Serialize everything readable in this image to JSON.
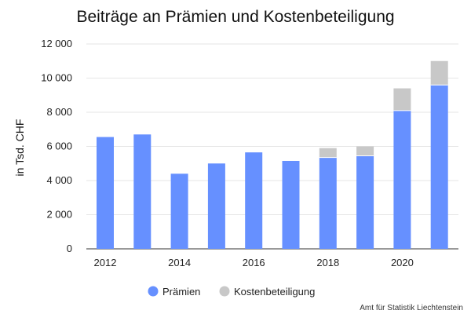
{
  "chart_data": {
    "type": "bar",
    "stacked": true,
    "title": "Beiträge an Prämien und Kostenbeteiligung",
    "xlabel": "",
    "ylabel": "in Tsd. CHF",
    "ylim": [
      0,
      12000
    ],
    "y_ticks": [
      0,
      2000,
      4000,
      6000,
      8000,
      10000,
      12000
    ],
    "y_tick_labels": [
      "0",
      "2 000",
      "4 000",
      "6 000",
      "8 000",
      "10 000",
      "12 000"
    ],
    "x_ticks": [
      2012,
      2014,
      2016,
      2018,
      2020
    ],
    "x_tick_labels": [
      "2012",
      "2014",
      "2016",
      "2018",
      "2020"
    ],
    "categories": [
      2012,
      2013,
      2014,
      2015,
      2016,
      2017,
      2018,
      2019,
      2020,
      2021
    ],
    "series": [
      {
        "name": "Prämien",
        "color": "#6690ff",
        "values": [
          6550,
          6700,
          4400,
          5000,
          5650,
          5150,
          5350,
          5450,
          8100,
          9600
        ]
      },
      {
        "name": "Kostenbeteiligung",
        "color": "#c8c8c8",
        "values": [
          0,
          0,
          0,
          0,
          0,
          0,
          550,
          550,
          1300,
          1400
        ]
      }
    ],
    "grid": true,
    "legend_position": "bottom",
    "source": "Amt für Statistik Liechtenstein"
  }
}
